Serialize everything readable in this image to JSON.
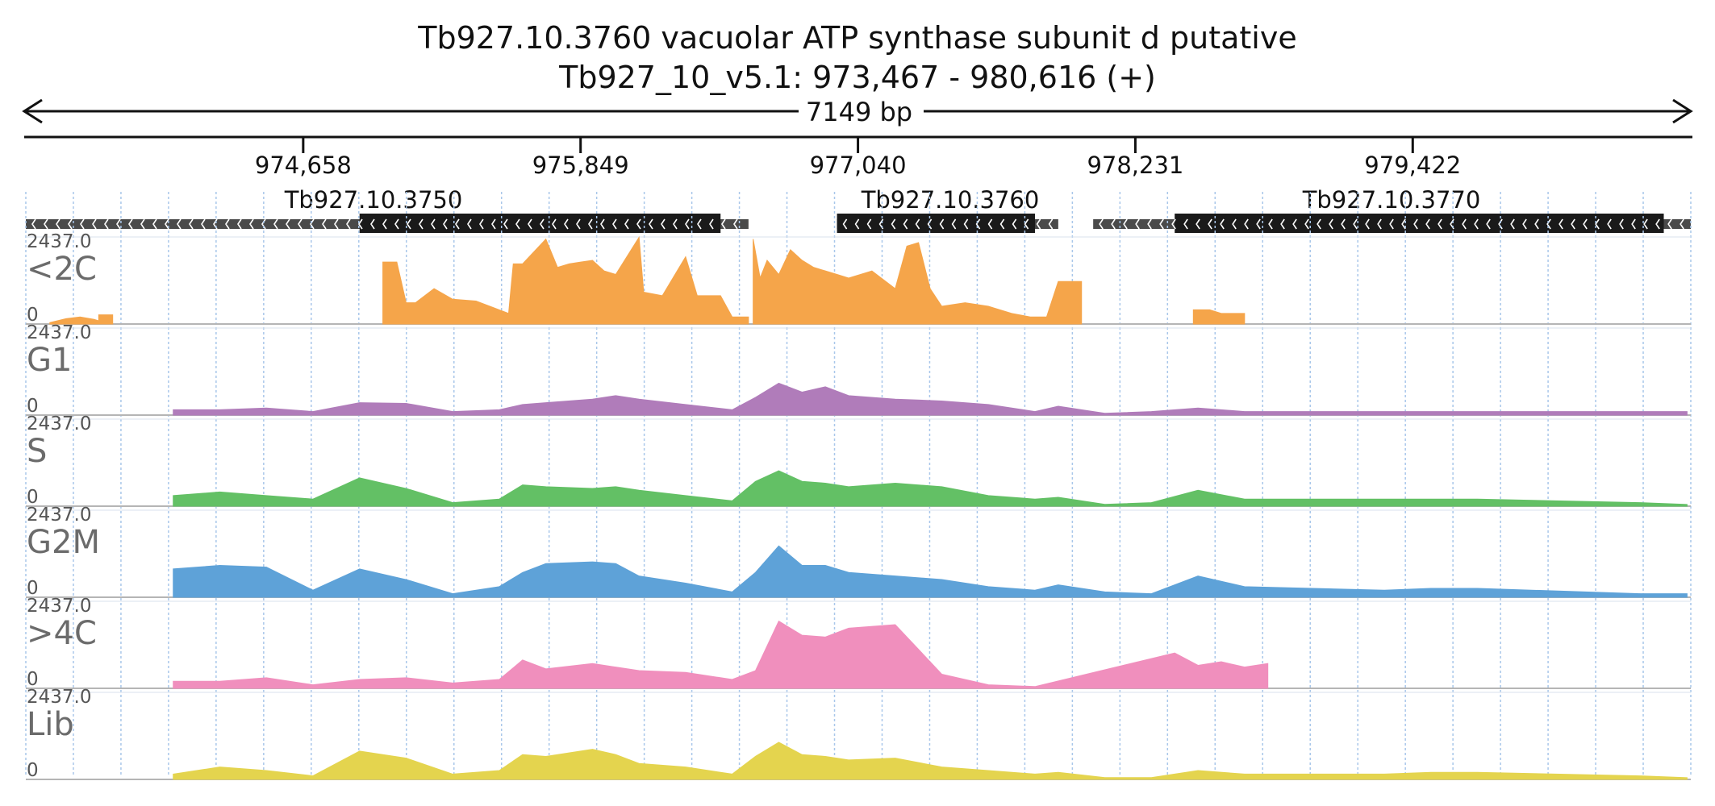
{
  "title": "Tb927.10.3760  vacuolar ATP synthase subunit d  putative",
  "subtitle": "Tb927_10_v5.1: 973,467 - 980,616 (+)",
  "span_label": "7149 bp",
  "ticks": [
    "974,658",
    "975,849",
    "977,040",
    "978,231",
    "979,422"
  ],
  "genes": [
    "Tb927.10.3750",
    "Tb927.10.3760",
    "Tb927.10.3770"
  ],
  "track_scale": {
    "max": "2437.0",
    "min": "0"
  },
  "tracks": [
    {
      "name": "<2C",
      "color": "#f5a54a"
    },
    {
      "name": "G1",
      "color": "#b07cba"
    },
    {
      "name": "S",
      "color": "#63c065"
    },
    {
      "name": "G2M",
      "color": "#5ea2d8"
    },
    {
      "name": ">4C",
      "color": "#f08fbd"
    },
    {
      "name": "Lib",
      "color": "#e4d44e"
    }
  ],
  "chart_data": {
    "type": "area",
    "title": "Tb927.10.3760  vacuolar ATP synthase subunit d  putative",
    "subtitle": "Tb927_10_v5.1: 973,467 - 980,616 (+)",
    "x_range": [
      973467,
      980616
    ],
    "y_range": [
      0,
      2437
    ],
    "x_ticks": [
      974658,
      975849,
      977040,
      978231,
      979422
    ],
    "genes": [
      {
        "name": "Tb927.10.3750",
        "start": 973467,
        "end": 976570,
        "cds_start": 974900,
        "cds_end": 976450,
        "strand": "-"
      },
      {
        "name": "Tb927.10.3760",
        "start": 976950,
        "end": 977900,
        "cds_start": 976950,
        "cds_end": 977800,
        "strand": "-"
      },
      {
        "name": "Tb927.10.3770",
        "start": 978050,
        "end": 980616,
        "cds_start": 978400,
        "cds_end": 980500,
        "strand": "-"
      }
    ],
    "series": [
      {
        "name": "<2C",
        "segments": [
          {
            "x": [
              973570,
              973640,
              973700,
              973760,
              973800,
              973840
            ],
            "y": [
              40,
              150,
              200,
              130,
              50,
              20
            ]
          },
          {
            "x": [
              973780,
              973830,
              973840
            ],
            "y": [
              260,
              260,
              260
            ]
          },
          {
            "x": [
              975000,
              975060,
              975100,
              975140,
              975220,
              975300,
              975400,
              975500,
              975540,
              975560,
              975600,
              975700,
              975750,
              975800,
              975850,
              975900,
              975950,
              976000,
              976100,
              976120,
              976200,
              976300,
              976350,
              976450,
              976500,
              976570
            ],
            "y": [
              1750,
              1750,
              600,
              600,
              1000,
              700,
              650,
              400,
              300,
              1700,
              1700,
              2400,
              1600,
              1700,
              1750,
              1800,
              1500,
              1400,
              2450,
              900,
              800,
              1900,
              800,
              800,
              200,
              200
            ]
          },
          {
            "x": [
              976590,
              976620,
              976650,
              976700,
              976750,
              976800,
              976850,
              976900,
              976950,
              977000,
              977100,
              977200,
              977250,
              977300,
              977350,
              977400,
              977500,
              977600,
              977700,
              977780,
              977850,
              977900,
              977960,
              978000
            ],
            "y": [
              2400,
              1300,
              1800,
              1400,
              2100,
              1800,
              1600,
              1500,
              1400,
              1300,
              1500,
              1000,
              2200,
              2300,
              1000,
              500,
              600,
              500,
              300,
              200,
              200,
              1200,
              1200,
              1200
            ]
          },
          {
            "x": [
              978480,
              978550,
              978600,
              978650,
              978700
            ],
            "y": [
              400,
              400,
              300,
              300,
              300
            ]
          }
        ]
      },
      {
        "name": "G1",
        "segments": [
          {
            "x": [
              974100,
              974300,
              974500,
              974700,
              974900,
              975100,
              975300,
              975500,
              975600,
              975700,
              975900,
              976000,
              976100,
              976300,
              976500,
              976600,
              976700,
              976800,
              976900,
              977000,
              977200,
              977400,
              977600,
              977800,
              977900,
              978100,
              978300,
              978500,
              978700,
              979300,
              979500,
              979700,
              980400,
              980600
            ],
            "y": [
              150,
              150,
              200,
              100,
              350,
              330,
              100,
              150,
              300,
              350,
              450,
              550,
              450,
              300,
              150,
              500,
              900,
              650,
              800,
              550,
              450,
              400,
              300,
              100,
              250,
              50,
              100,
              200,
              100,
              100,
              100,
              100,
              100,
              100
            ]
          }
        ]
      },
      {
        "name": "S",
        "segments": [
          {
            "x": [
              974100,
              974300,
              974500,
              974700,
              974900,
              975100,
              975300,
              975500,
              975600,
              975700,
              975900,
              976000,
              976100,
              976300,
              976500,
              976600,
              976700,
              976800,
              976900,
              977000,
              977200,
              977400,
              977600,
              977800,
              977900,
              978100,
              978300,
              978500,
              978700,
              979300,
              979500,
              979700,
              980400,
              980600
            ],
            "y": [
              300,
              400,
              300,
              200,
              800,
              500,
              100,
              200,
              600,
              550,
              500,
              550,
              450,
              300,
              150,
              700,
              1000,
              700,
              650,
              550,
              650,
              550,
              300,
              200,
              250,
              50,
              100,
              450,
              200,
              200,
              200,
              200,
              100,
              50
            ]
          }
        ]
      },
      {
        "name": "G2M",
        "segments": [
          {
            "x": [
              974100,
              974300,
              974500,
              974700,
              974900,
              975100,
              975300,
              975500,
              975600,
              975700,
              975900,
              976000,
              976100,
              976300,
              976500,
              976600,
              976700,
              976800,
              976900,
              977000,
              977200,
              977400,
              977600,
              977800,
              977900,
              978100,
              978300,
              978500,
              978700,
              979300,
              979500,
              979700,
              980400,
              980600
            ],
            "y": [
              800,
              900,
              850,
              200,
              800,
              500,
              100,
              300,
              700,
              950,
              1000,
              950,
              600,
              400,
              150,
              700,
              1450,
              900,
              900,
              700,
              600,
              500,
              300,
              200,
              350,
              150,
              100,
              600,
              300,
              200,
              250,
              250,
              100,
              100
            ]
          }
        ]
      },
      {
        "name": ">4C",
        "segments": [
          {
            "x": [
              974100,
              974300,
              974500,
              974700,
              974900,
              975100,
              975300,
              975500,
              975600,
              975700,
              975900,
              976000,
              976100,
              976300,
              976500,
              976600,
              976700,
              976800,
              976900,
              977000,
              977200,
              977400,
              977600,
              977800,
              978400,
              978500,
              978600,
              978700,
              978800
            ],
            "y": [
              200,
              200,
              300,
              100,
              250,
              300,
              150,
              250,
              800,
              550,
              700,
              600,
              500,
              450,
              250,
              500,
              1900,
              1500,
              1450,
              1700,
              1800,
              400,
              100,
              50,
              1000,
              650,
              750,
              600,
              700
            ]
          }
        ]
      },
      {
        "name": "Lib",
        "segments": [
          {
            "x": [
              974100,
              974300,
              974500,
              974700,
              974900,
              975100,
              975300,
              975500,
              975600,
              975700,
              975900,
              976000,
              976100,
              976300,
              976500,
              976600,
              976700,
              976800,
              976900,
              977000,
              977200,
              977400,
              977600,
              977800,
              977900,
              978100,
              978300,
              978500,
              978700,
              979300,
              979500,
              979700,
              980400,
              980600
            ],
            "y": [
              150,
              350,
              250,
              100,
              800,
              600,
              150,
              250,
              700,
              650,
              850,
              700,
              450,
              350,
              150,
              650,
              1050,
              700,
              650,
              550,
              600,
              350,
              250,
              150,
              200,
              50,
              50,
              250,
              150,
              150,
              200,
              200,
              100,
              50
            ]
          }
        ]
      }
    ]
  }
}
